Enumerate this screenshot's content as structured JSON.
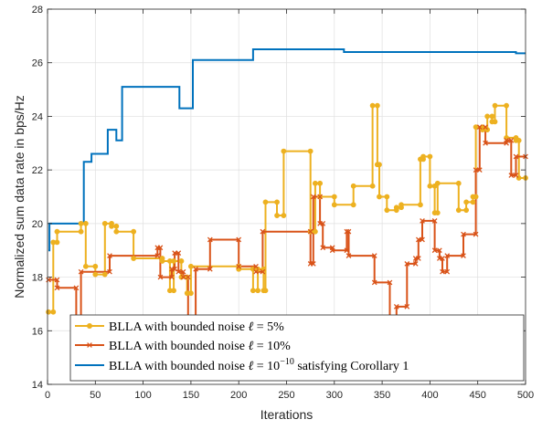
{
  "chart_data": {
    "type": "line",
    "xlabel": "Iterations",
    "ylabel": "Normalized sum data rate in bps/Hz",
    "xlim": [
      0,
      500
    ],
    "ylim": [
      14,
      28
    ],
    "xticks": [
      0,
      50,
      100,
      150,
      200,
      250,
      300,
      350,
      400,
      450,
      500
    ],
    "yticks": [
      14,
      16,
      18,
      20,
      22,
      24,
      26,
      28
    ],
    "grid": true,
    "legend_position": "bottom-right",
    "series": [
      {
        "name": "BLLA with bounded noise ℓ = 5%",
        "color": "#EDB120",
        "marker": "circle",
        "points": [
          [
            1,
            16.7
          ],
          [
            6,
            16.7
          ],
          [
            6,
            19.3
          ],
          [
            10,
            19.3
          ],
          [
            10,
            19.7
          ],
          [
            35,
            19.7
          ],
          [
            35,
            20.0
          ],
          [
            40,
            20.0
          ],
          [
            40,
            18.4
          ],
          [
            50,
            18.4
          ],
          [
            50,
            18.1
          ],
          [
            60,
            18.1
          ],
          [
            60,
            20.0
          ],
          [
            67,
            20.0
          ],
          [
            67,
            19.9
          ],
          [
            72,
            19.9
          ],
          [
            72,
            19.7
          ],
          [
            90,
            19.7
          ],
          [
            90,
            18.7
          ],
          [
            120,
            18.7
          ],
          [
            120,
            18.6
          ],
          [
            128,
            18.6
          ],
          [
            128,
            17.5
          ],
          [
            132,
            17.5
          ],
          [
            132,
            18.6
          ],
          [
            140,
            18.6
          ],
          [
            140,
            18.0
          ],
          [
            146,
            18.0
          ],
          [
            146,
            17.4
          ],
          [
            150,
            17.4
          ],
          [
            150,
            18.4
          ],
          [
            200,
            18.4
          ],
          [
            200,
            18.3
          ],
          [
            215,
            18.3
          ],
          [
            215,
            17.5
          ],
          [
            220,
            17.5
          ],
          [
            220,
            18.3
          ],
          [
            226,
            18.3
          ],
          [
            226,
            17.5
          ],
          [
            228,
            17.5
          ],
          [
            228,
            20.8
          ],
          [
            240,
            20.8
          ],
          [
            240,
            20.3
          ],
          [
            247,
            20.3
          ],
          [
            247,
            22.7
          ],
          [
            275,
            22.7
          ],
          [
            275,
            19.7
          ],
          [
            280,
            19.7
          ],
          [
            280,
            21.5
          ],
          [
            285,
            21.5
          ],
          [
            285,
            21.0
          ],
          [
            300,
            21.0
          ],
          [
            300,
            20.7
          ],
          [
            320,
            20.7
          ],
          [
            320,
            21.4
          ],
          [
            340,
            21.4
          ],
          [
            340,
            24.4
          ],
          [
            345,
            24.4
          ],
          [
            345,
            22.2
          ],
          [
            347,
            22.2
          ],
          [
            347,
            21.0
          ],
          [
            355,
            21.0
          ],
          [
            355,
            20.5
          ],
          [
            365,
            20.5
          ],
          [
            365,
            20.6
          ],
          [
            370,
            20.6
          ],
          [
            370,
            20.7
          ],
          [
            390,
            20.7
          ],
          [
            390,
            22.4
          ],
          [
            393,
            22.4
          ],
          [
            393,
            22.5
          ],
          [
            400,
            22.5
          ],
          [
            400,
            21.4
          ],
          [
            405,
            21.4
          ],
          [
            405,
            20.4
          ],
          [
            408,
            20.4
          ],
          [
            408,
            21.5
          ],
          [
            430,
            21.5
          ],
          [
            430,
            20.5
          ],
          [
            438,
            20.5
          ],
          [
            438,
            20.8
          ],
          [
            445,
            20.8
          ],
          [
            445,
            21.0
          ],
          [
            448,
            21.0
          ],
          [
            448,
            23.6
          ],
          [
            455,
            23.6
          ],
          [
            455,
            23.5
          ],
          [
            460,
            23.5
          ],
          [
            460,
            24.0
          ],
          [
            465,
            24.0
          ],
          [
            465,
            23.8
          ],
          [
            468,
            23.8
          ],
          [
            468,
            24.4
          ],
          [
            480,
            24.4
          ],
          [
            480,
            23.2
          ],
          [
            490,
            23.2
          ],
          [
            490,
            23.1
          ],
          [
            493,
            23.1
          ],
          [
            493,
            21.7
          ],
          [
            500,
            21.7
          ]
        ]
      },
      {
        "name": "BLLA with bounded noise ℓ = 10%",
        "color": "#D95319",
        "marker": "cross",
        "points": [
          [
            1,
            17.9
          ],
          [
            10,
            17.9
          ],
          [
            10,
            17.6
          ],
          [
            30,
            17.6
          ],
          [
            30,
            16.5
          ],
          [
            35,
            16.5
          ],
          [
            35,
            18.2
          ],
          [
            65,
            18.2
          ],
          [
            65,
            18.8
          ],
          [
            115,
            18.8
          ],
          [
            115,
            19.1
          ],
          [
            118,
            19.1
          ],
          [
            118,
            18.0
          ],
          [
            130,
            18.0
          ],
          [
            130,
            18.3
          ],
          [
            133,
            18.3
          ],
          [
            133,
            18.9
          ],
          [
            137,
            18.9
          ],
          [
            137,
            18.2
          ],
          [
            142,
            18.2
          ],
          [
            142,
            18.0
          ],
          [
            147,
            18.0
          ],
          [
            147,
            16.4
          ],
          [
            155,
            16.4
          ],
          [
            155,
            18.3
          ],
          [
            170,
            18.3
          ],
          [
            170,
            19.4
          ],
          [
            200,
            19.4
          ],
          [
            200,
            18.4
          ],
          [
            218,
            18.4
          ],
          [
            218,
            18.2
          ],
          [
            225,
            18.2
          ],
          [
            225,
            19.7
          ],
          [
            275,
            19.7
          ],
          [
            275,
            18.5
          ],
          [
            278,
            18.5
          ],
          [
            278,
            21.0
          ],
          [
            285,
            21.0
          ],
          [
            285,
            20.0
          ],
          [
            288,
            20.0
          ],
          [
            288,
            19.1
          ],
          [
            298,
            19.1
          ],
          [
            298,
            19.0
          ],
          [
            313,
            19.0
          ],
          [
            313,
            19.7
          ],
          [
            315,
            19.7
          ],
          [
            315,
            18.8
          ],
          [
            342,
            18.8
          ],
          [
            342,
            17.8
          ],
          [
            358,
            17.8
          ],
          [
            358,
            16.1
          ],
          [
            365,
            16.1
          ],
          [
            365,
            16.9
          ],
          [
            376,
            16.9
          ],
          [
            376,
            18.5
          ],
          [
            385,
            18.5
          ],
          [
            385,
            18.7
          ],
          [
            388,
            18.7
          ],
          [
            388,
            19.4
          ],
          [
            392,
            19.4
          ],
          [
            392,
            20.1
          ],
          [
            405,
            20.1
          ],
          [
            405,
            19.0
          ],
          [
            410,
            19.0
          ],
          [
            410,
            18.7
          ],
          [
            413,
            18.7
          ],
          [
            413,
            18.2
          ],
          [
            418,
            18.2
          ],
          [
            418,
            18.8
          ],
          [
            435,
            18.8
          ],
          [
            435,
            19.6
          ],
          [
            448,
            19.6
          ],
          [
            448,
            22.0
          ],
          [
            452,
            22.0
          ],
          [
            452,
            23.6
          ],
          [
            458,
            23.6
          ],
          [
            458,
            23.0
          ],
          [
            480,
            23.0
          ],
          [
            480,
            23.1
          ],
          [
            485,
            23.1
          ],
          [
            485,
            21.8
          ],
          [
            490,
            21.8
          ],
          [
            490,
            22.5
          ],
          [
            500,
            22.5
          ]
        ]
      },
      {
        "name": "BLLA with bounded noise ℓ = 10⁻¹⁰ satisfying Corollary 1",
        "color": "#0072BD",
        "marker": "none",
        "points": [
          [
            1,
            19.0
          ],
          [
            2,
            19.0
          ],
          [
            2,
            20.0
          ],
          [
            38,
            20.0
          ],
          [
            38,
            22.3
          ],
          [
            46,
            22.3
          ],
          [
            46,
            22.6
          ],
          [
            63,
            22.6
          ],
          [
            63,
            23.5
          ],
          [
            72,
            23.5
          ],
          [
            72,
            23.1
          ],
          [
            78,
            23.1
          ],
          [
            78,
            25.1
          ],
          [
            138,
            25.1
          ],
          [
            138,
            24.3
          ],
          [
            152,
            24.3
          ],
          [
            152,
            26.1
          ],
          [
            215,
            26.1
          ],
          [
            215,
            26.5
          ],
          [
            310,
            26.5
          ],
          [
            310,
            26.4
          ],
          [
            490,
            26.4
          ],
          [
            490,
            26.35
          ],
          [
            500,
            26.35
          ]
        ]
      }
    ],
    "legend_labels": [
      {
        "pre": "BLLA with bounded noise ",
        "ell": "ℓ",
        "mid": " = 5%",
        "sup": "",
        "post": ""
      },
      {
        "pre": "BLLA with bounded noise ",
        "ell": "ℓ",
        "mid": " = 10%",
        "sup": "",
        "post": ""
      },
      {
        "pre": "BLLA with bounded noise ",
        "ell": "ℓ",
        "mid": " = 10",
        "sup": "−10",
        "post": " satisfying Corollary 1"
      }
    ]
  }
}
